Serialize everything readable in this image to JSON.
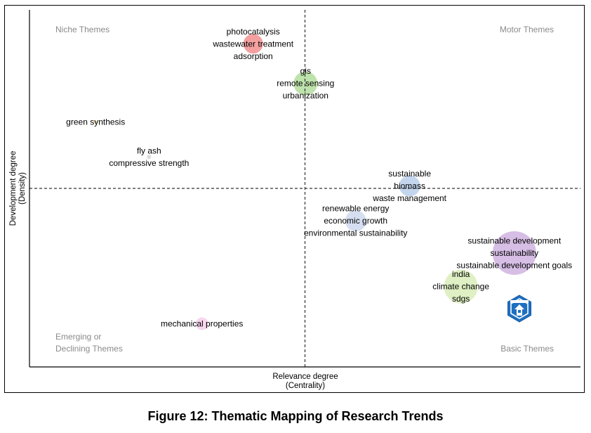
{
  "figure_caption": "Figure 12: Thematic Mapping of Research Trends",
  "chart_data": {
    "type": "scatter",
    "subtype": "thematic-map",
    "xlabel": [
      "Relevance degree",
      "(Centrality)"
    ],
    "ylabel": [
      "Development degree",
      "(Density)"
    ],
    "xlim": [
      0,
      1
    ],
    "ylim": [
      0,
      1
    ],
    "divider": {
      "x": 0.5,
      "y": 0.5
    },
    "quadrant_labels": {
      "top_left": [
        "Niche Themes"
      ],
      "top_right": [
        "Motor Themes"
      ],
      "bottom_left": [
        "Emerging or",
        "Declining Themes"
      ],
      "bottom_right": [
        "Basic Themes"
      ]
    },
    "clusters": [
      {
        "terms": [
          "photocatalysis",
          "wastewater treatment",
          "adsorption"
        ],
        "x": 0.406,
        "y": 0.905,
        "size": 14,
        "color": "#f08080"
      },
      {
        "terms": [
          "gis",
          "remote sensing",
          "urbanization"
        ],
        "x": 0.501,
        "y": 0.794,
        "size": 17,
        "color": "#a8d890"
      },
      {
        "terms": [
          "green synthesis"
        ],
        "x": 0.12,
        "y": 0.686,
        "size": 2,
        "color": "#f0d060"
      },
      {
        "terms": [
          "fly ash",
          "compressive strength"
        ],
        "x": 0.217,
        "y": 0.588,
        "size": 3,
        "color": "#d0d0d0"
      },
      {
        "terms": [
          "sustainable",
          "biomass",
          "waste management"
        ],
        "x": 0.69,
        "y": 0.507,
        "size": 15,
        "color": "#b0c8e8"
      },
      {
        "terms": [
          "renewable energy",
          "economic growth",
          "environmental sustainability"
        ],
        "x": 0.592,
        "y": 0.409,
        "size": 15,
        "color": "#c8d4ec"
      },
      {
        "terms": [
          "sustainable development",
          "sustainability",
          "sustainable development goals"
        ],
        "x": 0.88,
        "y": 0.319,
        "size": 31,
        "color": "#c8a8dc"
      },
      {
        "terms": [
          "india",
          "climate change",
          "sdgs"
        ],
        "x": 0.783,
        "y": 0.225,
        "size": 24,
        "color": "#d4ebb0"
      },
      {
        "terms": [
          "mechanical properties"
        ],
        "x": 0.313,
        "y": 0.121,
        "size": 9,
        "color": "#f4c8e8"
      }
    ]
  }
}
